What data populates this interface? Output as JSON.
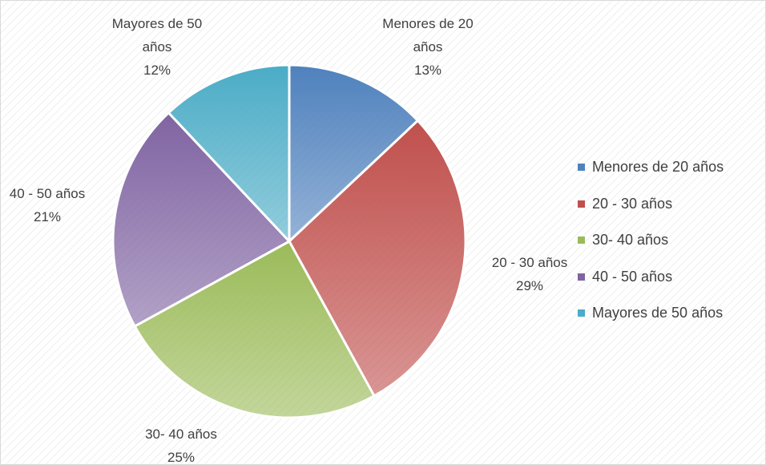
{
  "chart_data": {
    "type": "pie",
    "categories": [
      "Menores de 20 años",
      "20 - 30 años",
      "30- 40 años",
      "40 - 50 años",
      "Mayores de 50 años"
    ],
    "values": [
      13,
      29,
      25,
      21,
      12
    ],
    "value_labels": [
      "13%",
      "29%",
      "25%",
      "21%",
      "12%"
    ],
    "colors": [
      "#4f81bd",
      "#c0504d",
      "#9bbb59",
      "#8064a2",
      "#4bacc6"
    ],
    "legend": "right"
  }
}
